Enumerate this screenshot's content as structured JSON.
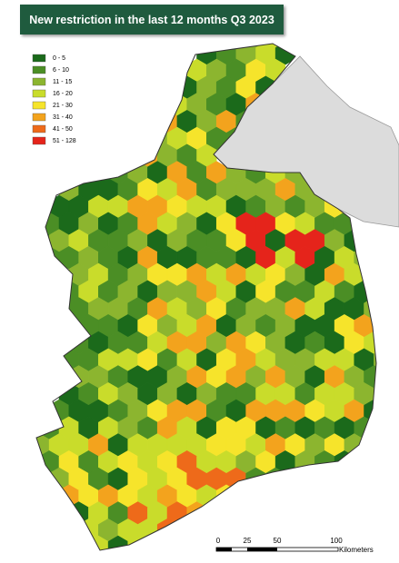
{
  "header": {
    "title": "New restriction in the last 12 months Q3 2023"
  },
  "legend": {
    "items": [
      {
        "label": "0 - 5",
        "color": "#1b6a1b"
      },
      {
        "label": "6 - 10",
        "color": "#4b8e25"
      },
      {
        "label": "11 - 15",
        "color": "#8cb52f"
      },
      {
        "label": "16 - 20",
        "color": "#c9dc2b"
      },
      {
        "label": "21 - 30",
        "color": "#f6e42b"
      },
      {
        "label": "31 - 40",
        "color": "#f3a31d"
      },
      {
        "label": "41 - 50",
        "color": "#ee6a1a"
      },
      {
        "label": "51 - 128",
        "color": "#e5241b"
      }
    ]
  },
  "scale_bar": {
    "ticks": [
      "0",
      "25",
      "50",
      "100"
    ],
    "unit": "Kilometers"
  }
}
